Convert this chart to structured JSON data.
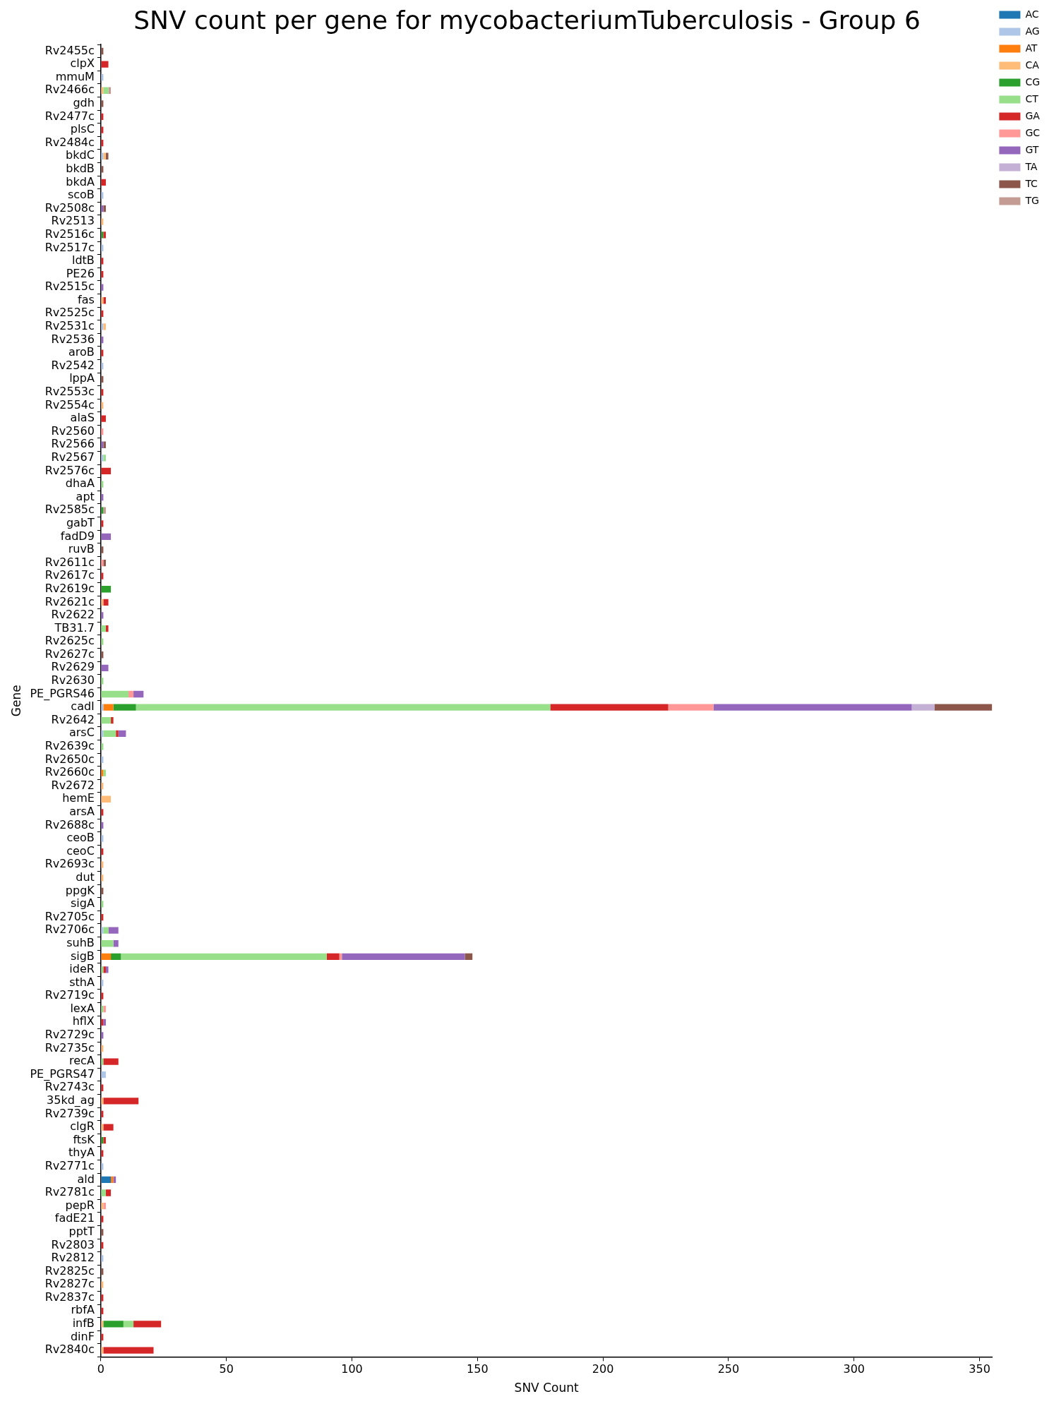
{
  "chart_data": {
    "type": "bar",
    "orientation": "horizontal",
    "stacked": true,
    "title": "SNV count per gene for mycobacteriumTuberculosis - Group 6",
    "xlabel": "SNV Count",
    "ylabel": "Gene",
    "legend": "top right",
    "grid": false,
    "xlim": [
      0,
      355
    ],
    "xticks": [
      0,
      50,
      100,
      150,
      200,
      250,
      300,
      350
    ],
    "categories": [
      "Rv2455c",
      "clpX",
      "mmuM",
      "Rv2466c",
      "gdh",
      "Rv2477c",
      "plsC",
      "Rv2484c",
      "bkdC",
      "bkdB",
      "bkdA",
      "scoB",
      "Rv2508c",
      "Rv2513",
      "Rv2516c",
      "Rv2517c",
      "ldtB",
      "PE26",
      "Rv2515c",
      "fas",
      "Rv2525c",
      "Rv2531c",
      "Rv2536",
      "aroB",
      "Rv2542",
      "lppA",
      "Rv2553c",
      "Rv2554c",
      "alaS",
      "Rv2560",
      "Rv2566",
      "Rv2567",
      "Rv2576c",
      "dhaA",
      "apt",
      "Rv2585c",
      "gabT",
      "fadD9",
      "ruvB",
      "Rv2611c",
      "Rv2617c",
      "Rv2619c",
      "Rv2621c",
      "Rv2622",
      "TB31.7",
      "Rv2625c",
      "Rv2627c",
      "Rv2629",
      "Rv2630",
      "PE_PGRS46",
      "cadI",
      "Rv2642",
      "arsC",
      "Rv2639c",
      "Rv2650c",
      "Rv2660c",
      "Rv2672",
      "hemE",
      "arsA",
      "Rv2688c",
      "ceoB",
      "ceoC",
      "Rv2693c",
      "dut",
      "ppgK",
      "sigA",
      "Rv2705c",
      "Rv2706c",
      "suhB",
      "sigB",
      "ideR",
      "sthA",
      "Rv2719c",
      "lexA",
      "hflX",
      "Rv2729c",
      "Rv2735c",
      "recA",
      "PE_PGRS47",
      "Rv2743c",
      "35kd_ag",
      "Rv2739c",
      "clgR",
      "ftsK",
      "thyA",
      "Rv2771c",
      "ald",
      "Rv2781c",
      "pepR",
      "fadE21",
      "pptT",
      "Rv2803",
      "Rv2812",
      "Rv2825c",
      "Rv2827c",
      "Rv2837c",
      "rbfA",
      "infB",
      "dinF",
      "Rv2840c"
    ],
    "series": [
      {
        "name": "AC",
        "color": "#1f77b4",
        "values": [
          null,
          null,
          null,
          null,
          null,
          null,
          null,
          null,
          null,
          null,
          null,
          null,
          null,
          null,
          null,
          null,
          null,
          null,
          null,
          null,
          null,
          null,
          null,
          null,
          null,
          null,
          null,
          null,
          null,
          null,
          null,
          null,
          null,
          null,
          null,
          null,
          null,
          null,
          null,
          null,
          null,
          null,
          null,
          null,
          null,
          null,
          null,
          null,
          null,
          null,
          null,
          null,
          null,
          null,
          null,
          null,
          null,
          null,
          null,
          null,
          null,
          null,
          null,
          null,
          null,
          null,
          null,
          null,
          null,
          null,
          null,
          null,
          null,
          null,
          null,
          null,
          null,
          null,
          null,
          null,
          null,
          null,
          null,
          null,
          null,
          null,
          4,
          null,
          null,
          null,
          null,
          null,
          null,
          null,
          null,
          null,
          null,
          null,
          null,
          null
        ]
      },
      {
        "name": "AG",
        "color": "#aec7e8",
        "values": [
          null,
          null,
          1,
          null,
          null,
          null,
          null,
          null,
          1,
          null,
          null,
          1,
          null,
          null,
          null,
          1,
          null,
          null,
          null,
          null,
          null,
          1,
          null,
          null,
          1,
          null,
          null,
          null,
          null,
          null,
          null,
          1,
          null,
          null,
          null,
          null,
          null,
          null,
          null,
          null,
          null,
          null,
          null,
          null,
          null,
          null,
          null,
          null,
          null,
          null,
          1,
          null,
          1,
          null,
          1,
          null,
          null,
          null,
          null,
          null,
          1,
          null,
          null,
          null,
          null,
          null,
          null,
          1,
          null,
          null,
          null,
          1,
          null,
          null,
          null,
          null,
          null,
          null,
          2,
          null,
          null,
          null,
          null,
          null,
          null,
          1,
          null,
          null,
          null,
          null,
          null,
          null,
          1,
          null,
          null,
          null,
          null,
          null,
          null,
          null
        ]
      },
      {
        "name": "AT",
        "color": "#ff7f0e",
        "values": [
          null,
          null,
          null,
          null,
          null,
          null,
          null,
          null,
          null,
          null,
          null,
          null,
          null,
          null,
          null,
          null,
          null,
          null,
          null,
          null,
          null,
          null,
          null,
          null,
          null,
          null,
          null,
          null,
          null,
          null,
          null,
          null,
          null,
          null,
          null,
          null,
          null,
          null,
          null,
          null,
          null,
          null,
          null,
          null,
          null,
          null,
          null,
          null,
          null,
          null,
          4,
          null,
          null,
          null,
          null,
          1,
          null,
          null,
          null,
          null,
          null,
          null,
          null,
          null,
          null,
          null,
          null,
          null,
          null,
          4,
          null,
          null,
          null,
          null,
          null,
          null,
          null,
          null,
          null,
          null,
          null,
          null,
          null,
          null,
          null,
          null,
          1,
          null,
          null,
          null,
          null,
          null,
          null,
          null,
          null,
          null,
          null,
          null,
          null,
          null
        ]
      },
      {
        "name": "CA",
        "color": "#ffbb78",
        "values": [
          null,
          null,
          null,
          1,
          null,
          null,
          null,
          null,
          1,
          null,
          null,
          null,
          null,
          1,
          null,
          null,
          null,
          null,
          null,
          1,
          null,
          1,
          null,
          null,
          null,
          null,
          null,
          1,
          null,
          null,
          null,
          null,
          null,
          null,
          null,
          null,
          null,
          null,
          null,
          null,
          null,
          null,
          1,
          null,
          null,
          null,
          null,
          null,
          null,
          null,
          null,
          null,
          null,
          null,
          null,
          null,
          1,
          4,
          null,
          null,
          null,
          null,
          1,
          1,
          null,
          null,
          null,
          null,
          null,
          null,
          null,
          null,
          null,
          null,
          null,
          null,
          1,
          null,
          null,
          null,
          1,
          null,
          1,
          null,
          null,
          null,
          null,
          null,
          1,
          null,
          null,
          null,
          null,
          null,
          1,
          null,
          null,
          1,
          null,
          1
        ]
      },
      {
        "name": "CG",
        "color": "#2ca02c",
        "values": [
          null,
          null,
          null,
          null,
          null,
          null,
          null,
          null,
          null,
          null,
          null,
          null,
          null,
          null,
          1,
          null,
          null,
          null,
          null,
          null,
          null,
          null,
          null,
          null,
          null,
          null,
          null,
          null,
          null,
          null,
          null,
          null,
          null,
          null,
          null,
          1,
          null,
          null,
          null,
          null,
          null,
          4,
          null,
          null,
          null,
          null,
          null,
          null,
          null,
          null,
          9,
          null,
          null,
          null,
          null,
          null,
          null,
          null,
          null,
          null,
          null,
          null,
          null,
          null,
          null,
          null,
          null,
          null,
          null,
          4,
          null,
          null,
          null,
          null,
          null,
          null,
          null,
          null,
          null,
          null,
          null,
          null,
          null,
          1,
          null,
          null,
          null,
          null,
          null,
          null,
          null,
          null,
          null,
          null,
          null,
          null,
          null,
          8,
          null,
          null
        ]
      },
      {
        "name": "CT",
        "color": "#98df8a",
        "values": [
          null,
          null,
          null,
          2,
          null,
          null,
          null,
          null,
          null,
          null,
          null,
          null,
          null,
          null,
          null,
          null,
          null,
          null,
          null,
          null,
          null,
          null,
          null,
          null,
          null,
          null,
          null,
          null,
          null,
          null,
          null,
          1,
          null,
          1,
          null,
          null,
          null,
          null,
          null,
          null,
          null,
          null,
          null,
          null,
          2,
          1,
          null,
          null,
          1,
          11,
          165,
          4,
          5,
          1,
          null,
          1,
          null,
          null,
          null,
          null,
          null,
          null,
          null,
          null,
          null,
          1,
          null,
          2,
          5,
          82,
          1,
          null,
          null,
          1,
          null,
          null,
          null,
          1,
          null,
          null,
          null,
          null,
          null,
          null,
          null,
          null,
          null,
          2,
          null,
          null,
          null,
          null,
          null,
          null,
          null,
          null,
          null,
          4,
          null,
          null
        ]
      },
      {
        "name": "GA",
        "color": "#d62728",
        "values": [
          null,
          3,
          null,
          null,
          null,
          1,
          1,
          1,
          null,
          null,
          2,
          null,
          null,
          null,
          1,
          null,
          1,
          1,
          null,
          1,
          1,
          null,
          null,
          1,
          null,
          null,
          1,
          null,
          2,
          null,
          null,
          null,
          4,
          null,
          null,
          null,
          1,
          null,
          null,
          null,
          1,
          null,
          2,
          null,
          1,
          null,
          null,
          null,
          null,
          null,
          47,
          1,
          1,
          null,
          null,
          null,
          null,
          null,
          1,
          null,
          null,
          1,
          null,
          null,
          null,
          null,
          1,
          null,
          null,
          5,
          1,
          null,
          1,
          null,
          1,
          null,
          null,
          6,
          null,
          1,
          14,
          1,
          4,
          1,
          1,
          null,
          null,
          2,
          null,
          1,
          null,
          1,
          null,
          null,
          null,
          1,
          1,
          11,
          1,
          20
        ]
      },
      {
        "name": "GC",
        "color": "#ff9896",
        "values": [
          null,
          null,
          null,
          null,
          null,
          null,
          null,
          null,
          null,
          null,
          null,
          null,
          null,
          null,
          null,
          null,
          null,
          null,
          null,
          null,
          null,
          null,
          null,
          null,
          null,
          null,
          null,
          null,
          null,
          1,
          null,
          null,
          null,
          null,
          null,
          null,
          null,
          null,
          null,
          1,
          null,
          null,
          null,
          null,
          null,
          null,
          null,
          null,
          null,
          2,
          18,
          null,
          null,
          null,
          null,
          null,
          null,
          null,
          null,
          null,
          null,
          null,
          null,
          null,
          null,
          null,
          null,
          null,
          null,
          1,
          null,
          null,
          null,
          1,
          null,
          null,
          null,
          null,
          null,
          null,
          null,
          null,
          null,
          null,
          null,
          null,
          null,
          null,
          1,
          null,
          null,
          null,
          null,
          null,
          null,
          null,
          null,
          null,
          null,
          null
        ]
      },
      {
        "name": "GT",
        "color": "#9467bd",
        "values": [
          null,
          null,
          null,
          null,
          null,
          null,
          null,
          null,
          null,
          null,
          null,
          null,
          1,
          null,
          null,
          null,
          null,
          null,
          1,
          null,
          null,
          null,
          1,
          null,
          null,
          null,
          null,
          null,
          null,
          null,
          1,
          null,
          null,
          null,
          1,
          null,
          null,
          4,
          null,
          null,
          null,
          null,
          null,
          1,
          null,
          null,
          null,
          3,
          null,
          4,
          79,
          null,
          3,
          null,
          null,
          null,
          null,
          null,
          null,
          1,
          null,
          null,
          null,
          null,
          null,
          null,
          null,
          4,
          2,
          49,
          1,
          null,
          null,
          null,
          1,
          1,
          null,
          null,
          null,
          null,
          null,
          null,
          null,
          null,
          null,
          null,
          1,
          null,
          null,
          null,
          null,
          null,
          null,
          null,
          null,
          null,
          null,
          null,
          null,
          null
        ]
      },
      {
        "name": "TA",
        "color": "#c5b0d5",
        "values": [
          null,
          null,
          null,
          null,
          null,
          null,
          null,
          null,
          null,
          null,
          null,
          null,
          null,
          null,
          null,
          null,
          null,
          null,
          null,
          null,
          null,
          null,
          null,
          null,
          null,
          null,
          null,
          null,
          null,
          null,
          null,
          null,
          null,
          null,
          null,
          null,
          null,
          null,
          null,
          null,
          null,
          null,
          null,
          null,
          null,
          null,
          null,
          null,
          null,
          null,
          9,
          null,
          null,
          null,
          null,
          null,
          null,
          null,
          null,
          null,
          null,
          null,
          null,
          null,
          null,
          null,
          null,
          null,
          null,
          null,
          null,
          null,
          null,
          null,
          null,
          null,
          null,
          null,
          null,
          null,
          null,
          null,
          null,
          null,
          null,
          null,
          null,
          null,
          null,
          null,
          null,
          null,
          null,
          null,
          null,
          null,
          null,
          null,
          null,
          null
        ]
      },
      {
        "name": "TC",
        "color": "#8c564b",
        "values": [
          1,
          null,
          null,
          null,
          1,
          null,
          null,
          null,
          1,
          1,
          null,
          null,
          1,
          null,
          null,
          null,
          null,
          null,
          null,
          null,
          null,
          null,
          null,
          null,
          null,
          1,
          null,
          null,
          null,
          null,
          1,
          null,
          null,
          null,
          null,
          null,
          null,
          null,
          1,
          1,
          null,
          null,
          null,
          null,
          null,
          null,
          1,
          null,
          null,
          null,
          23,
          null,
          null,
          null,
          null,
          null,
          null,
          null,
          null,
          null,
          null,
          null,
          null,
          null,
          1,
          null,
          null,
          null,
          null,
          3,
          null,
          null,
          null,
          null,
          null,
          null,
          null,
          null,
          null,
          null,
          null,
          null,
          null,
          null,
          null,
          null,
          null,
          null,
          null,
          null,
          1,
          null,
          null,
          1,
          null,
          null,
          null,
          null,
          null,
          null
        ]
      },
      {
        "name": "TG",
        "color": "#c49c94",
        "values": [
          null,
          null,
          null,
          1,
          null,
          null,
          null,
          null,
          null,
          null,
          null,
          null,
          null,
          null,
          null,
          null,
          null,
          null,
          null,
          null,
          null,
          null,
          null,
          null,
          null,
          null,
          null,
          null,
          null,
          null,
          null,
          null,
          null,
          null,
          null,
          1,
          null,
          null,
          null,
          null,
          null,
          null,
          null,
          null,
          null,
          null,
          null,
          null,
          null,
          null,
          null,
          null,
          null,
          null,
          null,
          null,
          null,
          null,
          null,
          null,
          null,
          null,
          null,
          null,
          null,
          null,
          null,
          null,
          null,
          null,
          null,
          null,
          null,
          null,
          null,
          null,
          null,
          null,
          null,
          null,
          null,
          null,
          null,
          null,
          null,
          null,
          null,
          null,
          null,
          null,
          null,
          null,
          null,
          null,
          null,
          null,
          null,
          null,
          null,
          null
        ]
      }
    ]
  }
}
